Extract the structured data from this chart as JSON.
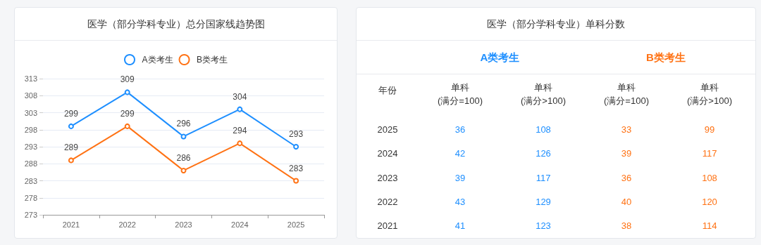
{
  "chart_data": [
    {
      "type": "line",
      "title": "医学（部分学科专业）总分国家线趋势图",
      "categories": [
        "2021",
        "2022",
        "2023",
        "2024",
        "2025"
      ],
      "series": [
        {
          "name": "A类考生",
          "color": "#1e8fff",
          "values": [
            299,
            309,
            296,
            304,
            293
          ]
        },
        {
          "name": "B类考生",
          "color": "#ff7214",
          "values": [
            289,
            299,
            286,
            294,
            283
          ]
        }
      ],
      "ylim": [
        273,
        313
      ],
      "yticks": [
        273,
        278,
        283,
        288,
        293,
        298,
        303,
        308,
        313
      ],
      "grid": "y",
      "legend": "top",
      "marker": "circle",
      "data_labels": true
    },
    {
      "type": "heatmap",
      "title": "医学（部分学科专业）单科分数",
      "annotations": [
        "A类考生",
        "B类考生",
        "年份"
      ],
      "categories": [
        "单科\n(满分=100)",
        "单科\n(满分>100)",
        "单科\n(满分=100)",
        "单科\n(满分>100)"
      ],
      "y_categories": [
        "2025",
        "2024",
        "2023",
        "2022",
        "2021"
      ],
      "cells": [
        [
          36,
          108,
          33,
          99
        ],
        [
          42,
          126,
          39,
          117
        ],
        [
          39,
          117,
          36,
          108
        ],
        [
          43,
          129,
          40,
          120
        ],
        [
          41,
          123,
          38,
          114
        ]
      ],
      "colors": [
        "#1e8fff",
        "#1e8fff",
        "#ff7214",
        "#ff7214"
      ],
      "data_labels": true
    }
  ]
}
